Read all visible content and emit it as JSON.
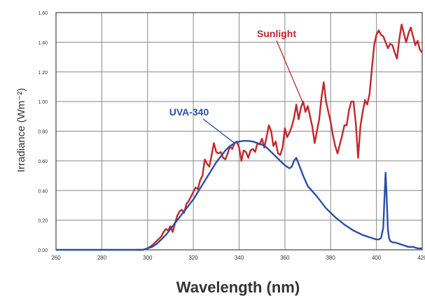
{
  "chart_data": {
    "type": "line",
    "title": "",
    "xlabel": "Wavelength (nm)",
    "ylabel": "Irradiance (Wm⁻²)",
    "xlim": [
      260,
      420
    ],
    "ylim": [
      0,
      1.6
    ],
    "x_ticks": [
      260,
      280,
      300,
      320,
      340,
      360,
      380,
      400,
      420
    ],
    "y_ticks": [
      0,
      0.2,
      0.4,
      0.6,
      0.8,
      1.0,
      1.2,
      1.4,
      1.6
    ],
    "x_tick_labels": [
      "260",
      "280",
      "300",
      "320",
      "340",
      "360",
      "380",
      "400",
      "420"
    ],
    "y_tick_labels": [
      "0.00",
      "0.20",
      "0.40",
      "0.60",
      "0.80",
      "1.00",
      "1.20",
      "1.40",
      "1.60"
    ],
    "grid": true,
    "colors": {
      "sunlight": "#c0282d",
      "uva340": "#2a4fa8",
      "grid": "#888888",
      "axis": "#444444"
    },
    "series": [
      {
        "name": "Sunlight",
        "color": "#c0282d",
        "x": [
          295,
          298,
          300,
          302,
          304,
          306,
          307,
          308,
          309,
          310,
          311,
          312,
          313,
          314,
          315,
          316,
          317,
          318,
          319,
          320,
          321,
          322,
          323,
          324,
          325,
          326,
          327,
          328,
          329,
          330,
          331,
          332,
          333,
          334,
          335,
          336,
          337,
          338,
          339,
          340,
          341,
          342,
          343,
          344,
          345,
          346,
          347,
          348,
          349,
          350,
          351,
          352,
          353,
          354,
          355,
          356,
          357,
          358,
          359,
          360,
          361,
          362,
          363,
          364,
          365,
          366,
          367,
          368,
          369,
          370,
          371,
          372,
          373,
          374,
          375,
          376,
          377,
          378,
          379,
          380,
          381,
          382,
          383,
          384,
          385,
          386,
          387,
          388,
          389,
          390,
          391,
          392,
          393,
          394,
          395,
          396,
          397,
          398,
          399,
          400,
          401,
          402,
          403,
          404,
          405,
          406,
          407,
          408,
          409,
          410,
          411,
          412,
          413,
          414,
          415,
          416,
          417,
          418,
          419,
          420
        ],
        "y": [
          0.0,
          0.0,
          0.01,
          0.03,
          0.06,
          0.09,
          0.12,
          0.14,
          0.13,
          0.16,
          0.12,
          0.18,
          0.23,
          0.26,
          0.27,
          0.25,
          0.31,
          0.33,
          0.36,
          0.39,
          0.42,
          0.41,
          0.47,
          0.5,
          0.61,
          0.58,
          0.56,
          0.64,
          0.72,
          0.66,
          0.65,
          0.66,
          0.62,
          0.61,
          0.65,
          0.7,
          0.68,
          0.72,
          0.73,
          0.69,
          0.6,
          0.67,
          0.66,
          0.62,
          0.67,
          0.68,
          0.66,
          0.72,
          0.71,
          0.75,
          0.69,
          0.76,
          0.84,
          0.8,
          0.7,
          0.73,
          0.65,
          0.64,
          0.69,
          0.82,
          0.76,
          0.79,
          0.83,
          0.89,
          0.98,
          0.88,
          0.96,
          1.0,
          0.93,
          0.97,
          0.9,
          0.83,
          0.72,
          0.8,
          0.88,
          1.03,
          1.13,
          1.0,
          0.93,
          0.86,
          0.77,
          0.7,
          0.65,
          0.71,
          0.77,
          0.84,
          0.84,
          0.94,
          1.0,
          1.0,
          0.85,
          0.62,
          0.83,
          0.93,
          1.01,
          0.98,
          1.05,
          1.22,
          1.38,
          1.45,
          1.48,
          1.45,
          1.44,
          1.4,
          1.36,
          1.39,
          1.38,
          1.33,
          1.29,
          1.42,
          1.52,
          1.46,
          1.4,
          1.46,
          1.5,
          1.44,
          1.38,
          1.41,
          1.35,
          1.33
        ]
      },
      {
        "name": "UVA-340",
        "color": "#2a4fa8",
        "x": [
          260,
          270,
          280,
          285,
          290,
          293,
          296,
          298,
          300,
          302,
          304,
          306,
          308,
          310,
          312,
          314,
          316,
          318,
          320,
          322,
          324,
          326,
          328,
          330,
          332,
          334,
          336,
          338,
          340,
          342,
          344,
          346,
          348,
          350,
          352,
          354,
          356,
          358,
          360,
          362,
          363,
          364,
          365,
          366,
          368,
          370,
          374,
          378,
          382,
          386,
          390,
          394,
          398,
          400,
          401,
          402,
          403,
          403.5,
          404,
          404.5,
          405,
          405.5,
          406,
          407,
          408,
          410,
          412,
          414,
          416,
          418,
          420
        ],
        "y": [
          0.0,
          0.0,
          0.0,
          0.0,
          0.0,
          0.0,
          0.0,
          0.0,
          0.01,
          0.02,
          0.04,
          0.07,
          0.1,
          0.14,
          0.18,
          0.22,
          0.26,
          0.3,
          0.34,
          0.39,
          0.44,
          0.49,
          0.54,
          0.59,
          0.63,
          0.67,
          0.7,
          0.72,
          0.73,
          0.735,
          0.735,
          0.73,
          0.72,
          0.71,
          0.69,
          0.66,
          0.63,
          0.6,
          0.57,
          0.55,
          0.56,
          0.6,
          0.62,
          0.58,
          0.5,
          0.43,
          0.36,
          0.28,
          0.22,
          0.17,
          0.13,
          0.1,
          0.08,
          0.07,
          0.07,
          0.08,
          0.15,
          0.35,
          0.52,
          0.35,
          0.14,
          0.08,
          0.06,
          0.05,
          0.05,
          0.04,
          0.03,
          0.02,
          0.02,
          0.01,
          0.01
        ]
      }
    ],
    "annotations": [
      {
        "text": "Sunlight",
        "color": "#c0282d",
        "points_to_x": 369,
        "points_to_y": 0.95
      },
      {
        "text": "UVA-340",
        "color": "#2a4fa8",
        "points_to_x": 338,
        "points_to_y": 0.72
      }
    ]
  }
}
